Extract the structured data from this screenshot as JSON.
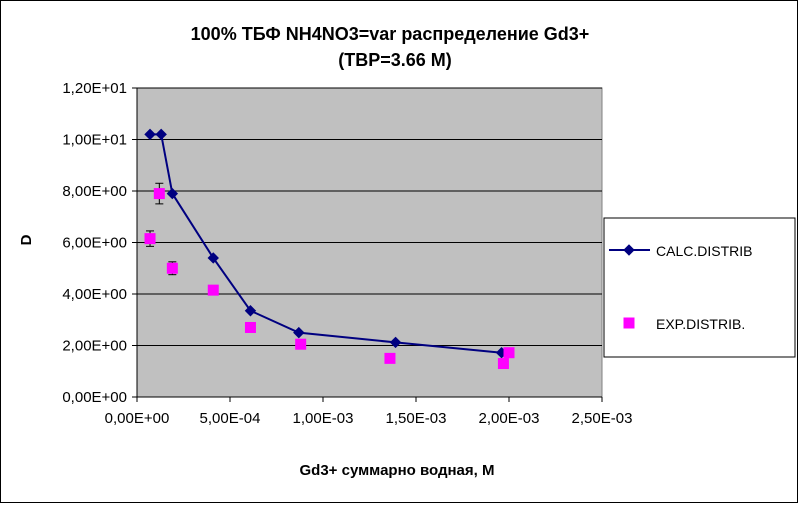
{
  "chart_data": {
    "type": "scatter",
    "title": [
      "100%  ТБФ  NH4NO3=var распределение Gd3+",
      "(ТВР=3.66 М)"
    ],
    "xlabel": "Gd3+ суммарно   водная, М",
    "ylabel": "D",
    "xlim": [
      0,
      0.0025
    ],
    "ylim": [
      0,
      12
    ],
    "x_ticks": [
      {
        "value": 0,
        "label": "0,00E+00"
      },
      {
        "value": 0.0005,
        "label": "5,00E-04"
      },
      {
        "value": 0.001,
        "label": "1,00E-03"
      },
      {
        "value": 0.0015,
        "label": "1,50E-03"
      },
      {
        "value": 0.002,
        "label": "2,00E-03"
      },
      {
        "value": 0.0025,
        "label": "2,50E-03"
      }
    ],
    "y_ticks": [
      {
        "value": 0,
        "label": "0,00E+00"
      },
      {
        "value": 2,
        "label": "2,00E+00"
      },
      {
        "value": 4,
        "label": "4,00E+00"
      },
      {
        "value": 6,
        "label": "6,00E+00"
      },
      {
        "value": 8,
        "label": "8,00E+00"
      },
      {
        "value": 10,
        "label": "1,00E+01"
      },
      {
        "value": 12,
        "label": "1,20E+01"
      }
    ],
    "legend_position": "right",
    "series": [
      {
        "name": "CALC.DISTRIB",
        "kind": "line-diamond",
        "color": "#000080",
        "x": [
          7e-05,
          0.00013,
          0.00019,
          0.00041,
          0.00061,
          0.00087,
          0.00139,
          0.00196
        ],
        "y": [
          10.2,
          10.2,
          7.9,
          5.4,
          3.35,
          2.5,
          2.12,
          1.72
        ]
      },
      {
        "name": "EXP.DISTRIB.",
        "kind": "square",
        "color": "#ff00ff",
        "x": [
          7e-05,
          0.00012,
          0.00019,
          0.00041,
          0.00061,
          0.00088,
          0.00136,
          0.00197,
          0.002
        ],
        "y": [
          6.15,
          7.9,
          5.0,
          4.15,
          2.7,
          2.05,
          1.5,
          1.3,
          1.72
        ],
        "error": [
          0.3,
          0.4,
          0.25,
          0,
          0,
          0,
          0,
          0,
          0
        ]
      }
    ]
  }
}
